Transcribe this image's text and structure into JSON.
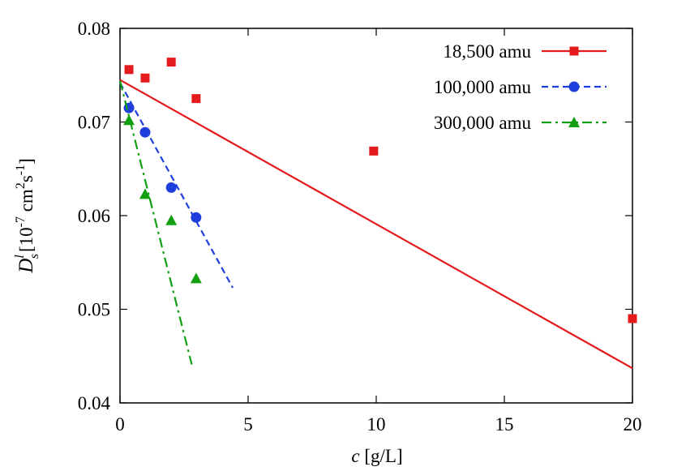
{
  "chart_data": {
    "type": "scatter",
    "xlabel": [
      "c",
      " [g/L]"
    ],
    "ylabel": [
      "D",
      "l",
      "s",
      "[10",
      "-7",
      " cm",
      "2",
      "s",
      "-1",
      "]"
    ],
    "xlim": [
      0,
      20
    ],
    "xticks": [
      0,
      5,
      10,
      15,
      20
    ],
    "ylim": [
      0.04,
      0.08
    ],
    "yticks": [
      0.04,
      0.05,
      0.06,
      0.07,
      0.08
    ],
    "grid": false,
    "legend": "top-right",
    "series": [
      {
        "name": "18,500 amu",
        "color": "#e41a1c",
        "marker": "square",
        "dash": "solid",
        "x": [
          0.35,
          0.98,
          2.0,
          2.97,
          9.9,
          20.0
        ],
        "values": [
          0.0756,
          0.0747,
          0.0764,
          0.0725,
          0.0669,
          0.049
        ],
        "fit_x": [
          0,
          20
        ],
        "fit_values": [
          0.0745,
          0.0437
        ]
      },
      {
        "name": "100,000 amu",
        "color": "#1f3fdd",
        "marker": "circle",
        "dash": "dashed",
        "x": [
          0.35,
          0.98,
          2.0,
          2.97
        ],
        "values": [
          0.0715,
          0.0689,
          0.063,
          0.0598
        ],
        "fit_x": [
          0,
          4.4
        ],
        "fit_values": [
          0.0742,
          0.0523
        ]
      },
      {
        "name": "300,000 amu",
        "color": "#12a012",
        "marker": "triangle",
        "dash": "dashdot",
        "x": [
          0.35,
          0.98,
          2.0,
          2.97
        ],
        "values": [
          0.0702,
          0.0623,
          0.0595,
          0.0533
        ],
        "fit_x": [
          0,
          2.8
        ],
        "fit_values": [
          0.0744,
          0.0441
        ]
      }
    ]
  }
}
